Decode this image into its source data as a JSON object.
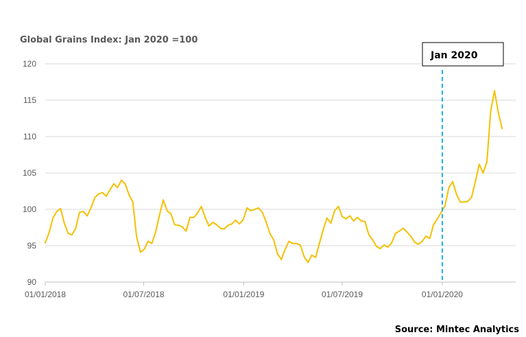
{
  "chart_data": {
    "type": "line",
    "title": "Global Grains Index: Jan 2020 =100",
    "source": "Source: Mintec Analytics",
    "annotation": {
      "label": "Jan 2020",
      "x": "2020-01-01",
      "line_color": "#1ab0e8"
    },
    "line_color": "#f5c000",
    "grid": true,
    "ylim": [
      90,
      120
    ],
    "y_ticks": [
      90,
      95,
      100,
      105,
      110,
      115,
      120
    ],
    "x_ticks": [
      {
        "date": "2018-01-01",
        "label": "01/01/2018"
      },
      {
        "date": "2018-07-01",
        "label": "01/07/2018"
      },
      {
        "date": "2019-01-01",
        "label": "01/01/2019"
      },
      {
        "date": "2019-07-01",
        "label": "01/07/2019"
      },
      {
        "date": "2020-01-01",
        "label": "01/01/2020"
      }
    ],
    "xlim": [
      "2018-01-01",
      "2020-05-15"
    ],
    "series": [
      {
        "points": [
          [
            "2018-01-01",
            95.4
          ],
          [
            "2018-01-08",
            96.8
          ],
          [
            "2018-01-15",
            98.8
          ],
          [
            "2018-01-22",
            99.7
          ],
          [
            "2018-01-29",
            100.1
          ],
          [
            "2018-02-05",
            98.1
          ],
          [
            "2018-02-12",
            96.7
          ],
          [
            "2018-02-19",
            96.5
          ],
          [
            "2018-02-26",
            97.4
          ],
          [
            "2018-03-05",
            99.6
          ],
          [
            "2018-03-12",
            99.7
          ],
          [
            "2018-03-19",
            99.1
          ],
          [
            "2018-03-26",
            100.2
          ],
          [
            "2018-04-02",
            101.6
          ],
          [
            "2018-04-09",
            102.1
          ],
          [
            "2018-04-16",
            102.3
          ],
          [
            "2018-04-23",
            101.8
          ],
          [
            "2018-04-30",
            102.7
          ],
          [
            "2018-05-07",
            103.5
          ],
          [
            "2018-05-14",
            103.0
          ],
          [
            "2018-05-21",
            104.0
          ],
          [
            "2018-05-28",
            103.5
          ],
          [
            "2018-06-04",
            102.0
          ],
          [
            "2018-06-11",
            101.0
          ],
          [
            "2018-06-18",
            96.2
          ],
          [
            "2018-06-25",
            94.1
          ],
          [
            "2018-07-02",
            94.5
          ],
          [
            "2018-07-09",
            95.6
          ],
          [
            "2018-07-16",
            95.3
          ],
          [
            "2018-07-23",
            96.9
          ],
          [
            "2018-07-30",
            99.2
          ],
          [
            "2018-08-06",
            101.3
          ],
          [
            "2018-08-13",
            99.8
          ],
          [
            "2018-08-20",
            99.4
          ],
          [
            "2018-08-27",
            97.9
          ],
          [
            "2018-09-03",
            97.8
          ],
          [
            "2018-09-10",
            97.6
          ],
          [
            "2018-09-17",
            97.0
          ],
          [
            "2018-09-24",
            98.9
          ],
          [
            "2018-10-01",
            98.9
          ],
          [
            "2018-10-08",
            99.5
          ],
          [
            "2018-10-15",
            100.4
          ],
          [
            "2018-10-22",
            98.9
          ],
          [
            "2018-10-29",
            97.7
          ],
          [
            "2018-11-05",
            98.2
          ],
          [
            "2018-11-12",
            97.9
          ],
          [
            "2018-11-19",
            97.4
          ],
          [
            "2018-11-26",
            97.3
          ],
          [
            "2018-12-03",
            97.8
          ],
          [
            "2018-12-10",
            98.0
          ],
          [
            "2018-12-17",
            98.5
          ],
          [
            "2018-12-24",
            98.0
          ],
          [
            "2018-12-31",
            98.6
          ],
          [
            "2019-01-07",
            100.2
          ],
          [
            "2019-01-14",
            99.8
          ],
          [
            "2019-01-21",
            100.0
          ],
          [
            "2019-01-28",
            100.2
          ],
          [
            "2019-02-04",
            99.6
          ],
          [
            "2019-02-11",
            98.3
          ],
          [
            "2019-02-18",
            96.7
          ],
          [
            "2019-02-25",
            95.8
          ],
          [
            "2019-03-04",
            93.9
          ],
          [
            "2019-03-11",
            93.1
          ],
          [
            "2019-03-18",
            94.5
          ],
          [
            "2019-03-25",
            95.6
          ],
          [
            "2019-04-01",
            95.3
          ],
          [
            "2019-04-08",
            95.3
          ],
          [
            "2019-04-15",
            95.1
          ],
          [
            "2019-04-22",
            93.5
          ],
          [
            "2019-04-29",
            92.7
          ],
          [
            "2019-05-06",
            93.7
          ],
          [
            "2019-05-13",
            93.4
          ],
          [
            "2019-05-20",
            95.3
          ],
          [
            "2019-05-27",
            97.2
          ],
          [
            "2019-06-03",
            98.8
          ],
          [
            "2019-06-10",
            98.1
          ],
          [
            "2019-06-17",
            99.8
          ],
          [
            "2019-06-24",
            100.4
          ],
          [
            "2019-07-01",
            99.0
          ],
          [
            "2019-07-08",
            98.7
          ],
          [
            "2019-07-15",
            99.1
          ],
          [
            "2019-07-22",
            98.4
          ],
          [
            "2019-07-29",
            98.9
          ],
          [
            "2019-08-05",
            98.4
          ],
          [
            "2019-08-12",
            98.3
          ],
          [
            "2019-08-19",
            96.5
          ],
          [
            "2019-08-26",
            95.8
          ],
          [
            "2019-09-02",
            94.9
          ],
          [
            "2019-09-09",
            94.6
          ],
          [
            "2019-09-16",
            95.1
          ],
          [
            "2019-09-23",
            94.8
          ],
          [
            "2019-09-30",
            95.4
          ],
          [
            "2019-10-07",
            96.7
          ],
          [
            "2019-10-14",
            97.0
          ],
          [
            "2019-10-21",
            97.4
          ],
          [
            "2019-10-28",
            96.9
          ],
          [
            "2019-11-04",
            96.3
          ],
          [
            "2019-11-11",
            95.5
          ],
          [
            "2019-11-18",
            95.2
          ],
          [
            "2019-11-25",
            95.6
          ],
          [
            "2019-12-02",
            96.3
          ],
          [
            "2019-12-09",
            96.0
          ],
          [
            "2019-12-16",
            97.9
          ],
          [
            "2019-12-23",
            98.7
          ],
          [
            "2019-12-30",
            99.6
          ],
          [
            "2020-01-06",
            100.5
          ],
          [
            "2020-01-13",
            103.0
          ],
          [
            "2020-01-20",
            103.8
          ],
          [
            "2020-01-27",
            102.1
          ],
          [
            "2020-02-03",
            101.0
          ],
          [
            "2020-02-10",
            101.0
          ],
          [
            "2020-02-17",
            101.1
          ],
          [
            "2020-02-24",
            101.7
          ],
          [
            "2020-03-02",
            103.9
          ],
          [
            "2020-03-09",
            106.2
          ],
          [
            "2020-03-16",
            105.0
          ],
          [
            "2020-03-23",
            106.5
          ],
          [
            "2020-03-30",
            113.5
          ],
          [
            "2020-04-06",
            116.3
          ],
          [
            "2020-04-13",
            113.3
          ],
          [
            "2020-04-20",
            111.1
          ]
        ]
      }
    ]
  }
}
